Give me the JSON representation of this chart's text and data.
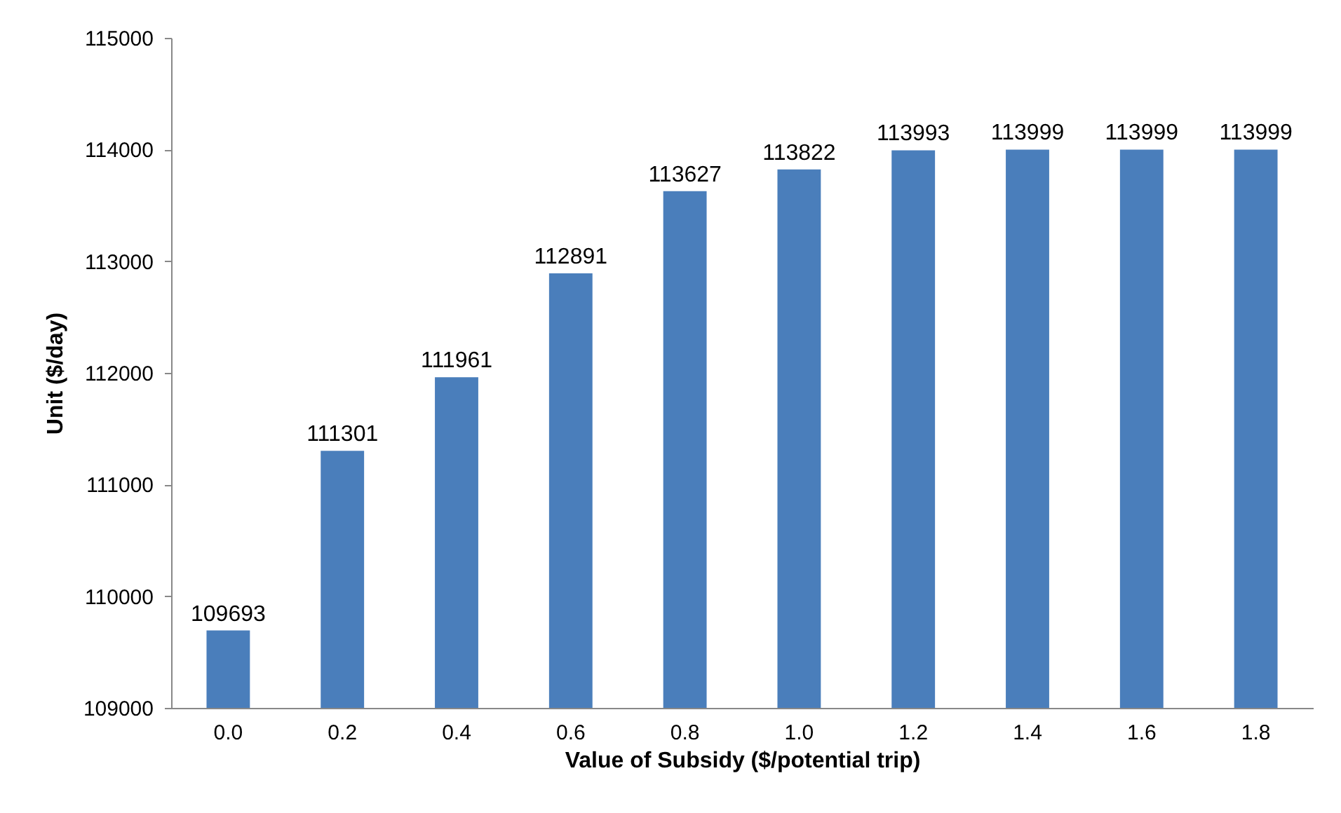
{
  "chart_data": {
    "type": "bar",
    "xlabel": "Value of Subsidy ($/potential trip)",
    "ylabel": "Unit ($/day)",
    "categories": [
      "0.0",
      "0.2",
      "0.4",
      "0.6",
      "0.8",
      "1.0",
      "1.2",
      "1.4",
      "1.6",
      "1.8"
    ],
    "values": [
      109693,
      111301,
      111961,
      112891,
      113627,
      113822,
      113993,
      113999,
      113999,
      113999
    ],
    "color": "#4a7ebb",
    "ylim": [
      109000,
      115000
    ],
    "yticks": [
      109000,
      110000,
      111000,
      112000,
      113000,
      114000,
      115000
    ],
    "data_labels": true,
    "grid": false
  }
}
